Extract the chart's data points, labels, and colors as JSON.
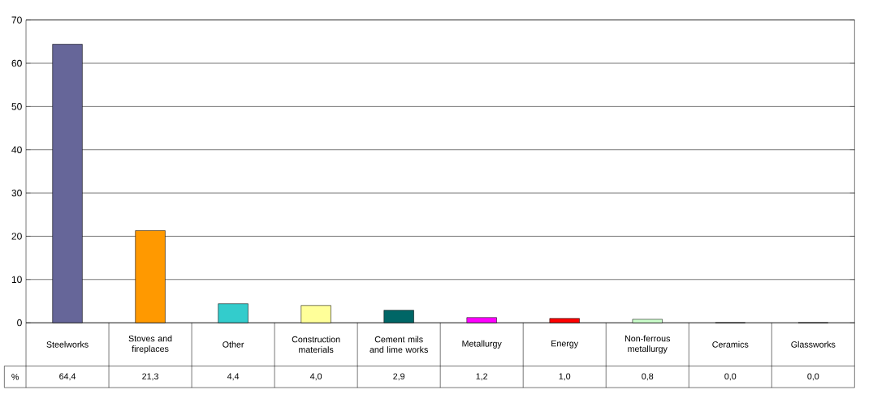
{
  "chart_data": {
    "type": "bar",
    "ylabel": "%",
    "categories": [
      "Steelworks",
      "Stoves and fireplaces",
      "Other",
      "Construction materials",
      "Cement mils and lime works",
      "Metallurgy",
      "Energy",
      "Non-ferrous metallurgy",
      "Ceramics",
      "Glassworks"
    ],
    "values": [
      64.4,
      21.3,
      4.4,
      4.0,
      2.9,
      1.2,
      1.0,
      0.8,
      0.0,
      0.0
    ],
    "value_labels": [
      "64,4",
      "21,3",
      "4,4",
      "4,0",
      "2,9",
      "1,2",
      "1,0",
      "0,8",
      "0,0",
      "0,0"
    ],
    "colors": [
      "#666699",
      "#ff9900",
      "#33cccc",
      "#ffff99",
      "#006666",
      "#ff00ff",
      "#ff0000",
      "#ccffcc",
      "#ffff00",
      "#cc9900"
    ],
    "ylim": [
      0,
      70
    ],
    "yticks": [
      0,
      10,
      20,
      30,
      40,
      50,
      60,
      70
    ],
    "grid": "y"
  }
}
